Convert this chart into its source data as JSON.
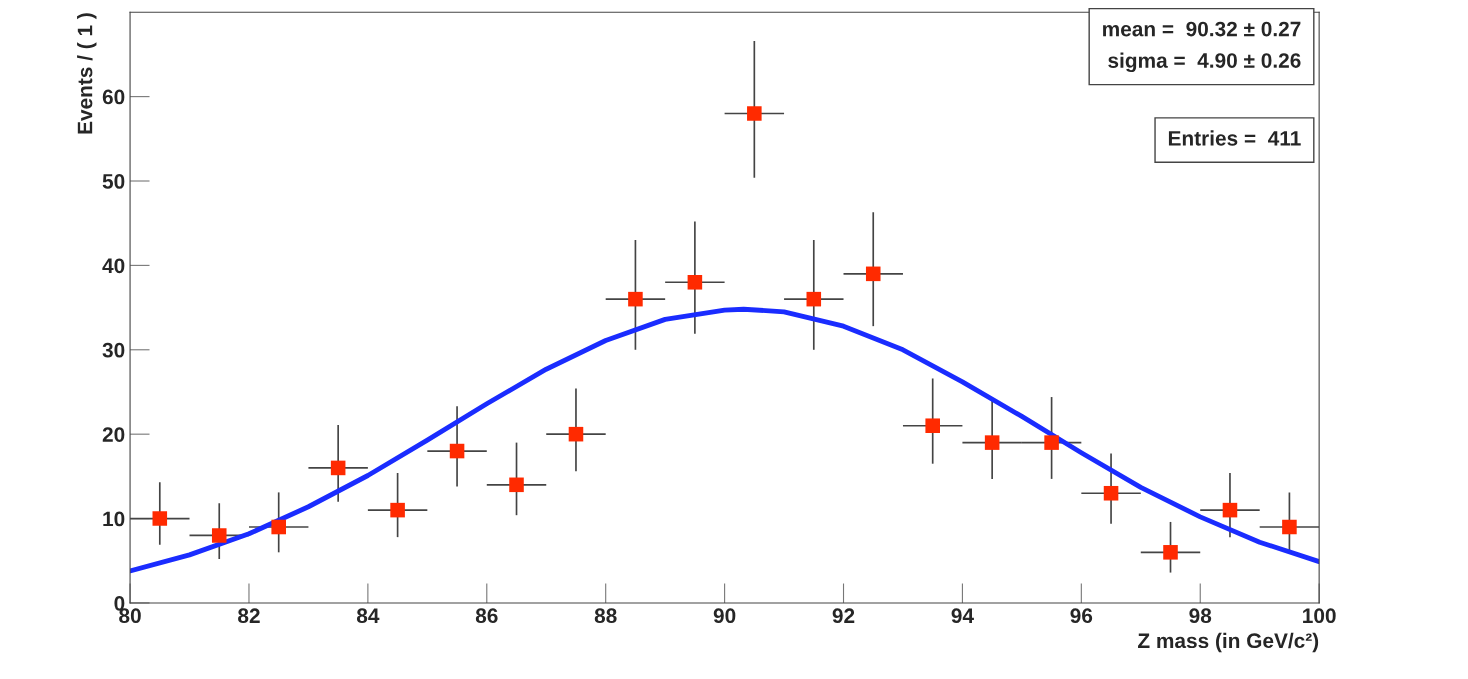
{
  "chart_data": {
    "type": "scatter",
    "xlabel": "Z mass (in GeV/c²)",
    "ylabel": "Events / ( 1 )",
    "xlim": [
      80,
      100
    ],
    "xticks": [
      80,
      82,
      84,
      86,
      88,
      90,
      92,
      94,
      96,
      98,
      100
    ],
    "ylim": [
      0,
      70
    ],
    "yticks": [
      0,
      10,
      20,
      30,
      40,
      50,
      60
    ],
    "grid": false,
    "legend": false,
    "series": [
      {
        "marker": "square",
        "color": "#ff2a00",
        "x": [
          80.5,
          81.5,
          82.5,
          83.5,
          84.5,
          85.5,
          86.5,
          87.5,
          88.5,
          89.5,
          90.5,
          91.5,
          92.5,
          93.5,
          94.5,
          95.5,
          96.5,
          97.5,
          98.5,
          99.5
        ],
        "values": [
          10,
          8,
          9,
          16,
          11,
          18,
          14,
          20,
          36,
          38,
          58,
          36,
          39,
          21,
          19,
          19,
          13,
          6,
          11,
          9
        ],
        "errors": [
          [
            6.9,
            14.3
          ],
          [
            5.2,
            11.8
          ],
          [
            6.0,
            13.1
          ],
          [
            12.0,
            21.1
          ],
          [
            7.8,
            15.4
          ],
          [
            13.8,
            23.3
          ],
          [
            10.4,
            19.0
          ],
          [
            15.6,
            25.4
          ],
          [
            30.0,
            43.0
          ],
          [
            31.9,
            45.2
          ],
          [
            50.4,
            66.6
          ],
          [
            30.0,
            43.0
          ],
          [
            32.8,
            46.3
          ],
          [
            16.5,
            26.6
          ],
          [
            14.7,
            24.4
          ],
          [
            14.7,
            24.4
          ],
          [
            9.4,
            17.7
          ],
          [
            3.6,
            9.6
          ],
          [
            7.8,
            15.4
          ],
          [
            6.0,
            13.1
          ]
        ],
        "xerrors": [
          0.5,
          0.5,
          0.5,
          0.5,
          0.5,
          0.5,
          0.5,
          0.5,
          0.5,
          0.5,
          0.5,
          0.5,
          0.5,
          0.5,
          0.5,
          0.5,
          0.5,
          0.5,
          0.5,
          0.5
        ]
      },
      {
        "type": "line",
        "marker": "none",
        "line_style": "solid",
        "color": "#1a2cff",
        "x": [
          80,
          81,
          82,
          83,
          84,
          85,
          86,
          87,
          88,
          89,
          90,
          90.32,
          91,
          92,
          93,
          94,
          95,
          96,
          97,
          98,
          99,
          100
        ],
        "values": [
          3.8,
          5.7,
          8.2,
          11.4,
          15.1,
          19.3,
          23.6,
          27.7,
          31.1,
          33.6,
          34.7,
          34.8,
          34.5,
          32.8,
          30.0,
          26.2,
          22.1,
          17.8,
          13.7,
          10.2,
          7.2,
          4.9
        ]
      }
    ],
    "annotations": [
      "mean =  90.32 ± 0.27",
      "sigma =  4.90 ± 0.26",
      "Entries =  411"
    ]
  }
}
